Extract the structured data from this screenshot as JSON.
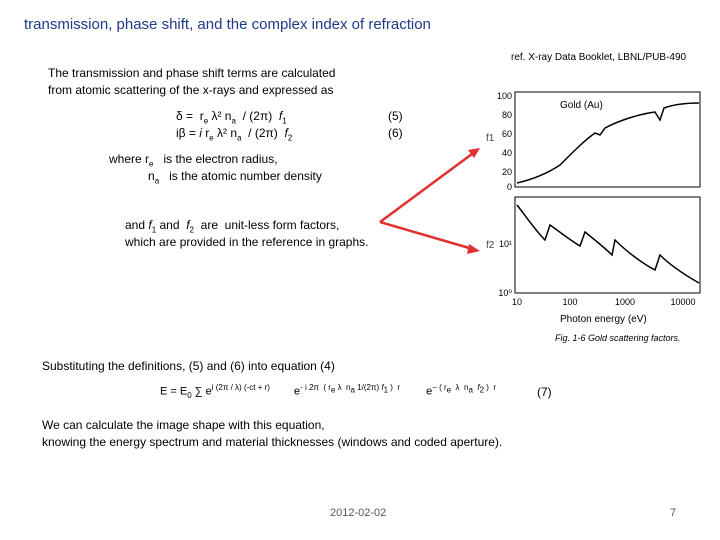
{
  "title": "transmission, phase shift, and the complex index of refraction",
  "reference": "ref. X-ray Data Booklet, LBNL/PUB-490",
  "intro": [
    "The transmission and phase shift terms are calculated",
    "from atomic scattering of the x-rays and expressed as"
  ],
  "equations": [
    {
      "parts": [
        "δ =  r",
        "e",
        " λ² n",
        "a",
        "  / (2π)  ",
        "f",
        "1"
      ],
      "number": "(5)"
    },
    {
      "parts": [
        "iβ = ",
        "i",
        " r",
        "e",
        " λ² n",
        "a",
        "  / (2π)  ",
        "f",
        "2"
      ],
      "number": "(6)"
    }
  ],
  "where": [
    {
      "parts": [
        "where r",
        "e",
        "   is the electron radius,"
      ]
    },
    {
      "parts": [
        "n",
        "a",
        "   is the atomic number density"
      ]
    }
  ],
  "form_factors": [
    {
      "parts": [
        "and ",
        "f",
        "1",
        " and  ",
        "f",
        "2",
        "  are  unit-less form factors,"
      ]
    },
    {
      "parts": [
        "which are provided in the reference in graphs."
      ]
    }
  ],
  "substituting": "Substituting the definitions, (5) and (6) into equation (4)",
  "equation7": {
    "parts": [
      "E = E",
      "0",
      " ∑ e",
      "i (2π / λ) (-ct + r)",
      "e",
      "- i 2π  ( r",
      "e",
      " λ  n",
      "a",
      " 1/(2π) ",
      "f",
      "1",
      " )  r",
      "e",
      "− ( r",
      "e",
      "  λ  n",
      "a",
      "  f",
      "2",
      " )  r"
    ],
    "number": "(7)"
  },
  "conclusion": [
    "We can calculate the image shape with this equation,",
    "knowing the energy spectrum and material thicknesses (windows and coded aperture)."
  ],
  "figure": {
    "title": "Gold (Au)",
    "f1_label": "f1",
    "f2_label": "f2",
    "f1_ticks": [
      "100",
      "80",
      "60",
      "40",
      "20",
      "0"
    ],
    "f2_ticks": [
      "10¹",
      "10⁰"
    ],
    "x_ticks": [
      "10",
      "100",
      "1000",
      "10000"
    ],
    "x_label": "Photon energy (eV)",
    "caption": "Fig. 1-6  Gold scattering factors."
  },
  "footer": {
    "date": "2012-02-02",
    "page": "7"
  }
}
